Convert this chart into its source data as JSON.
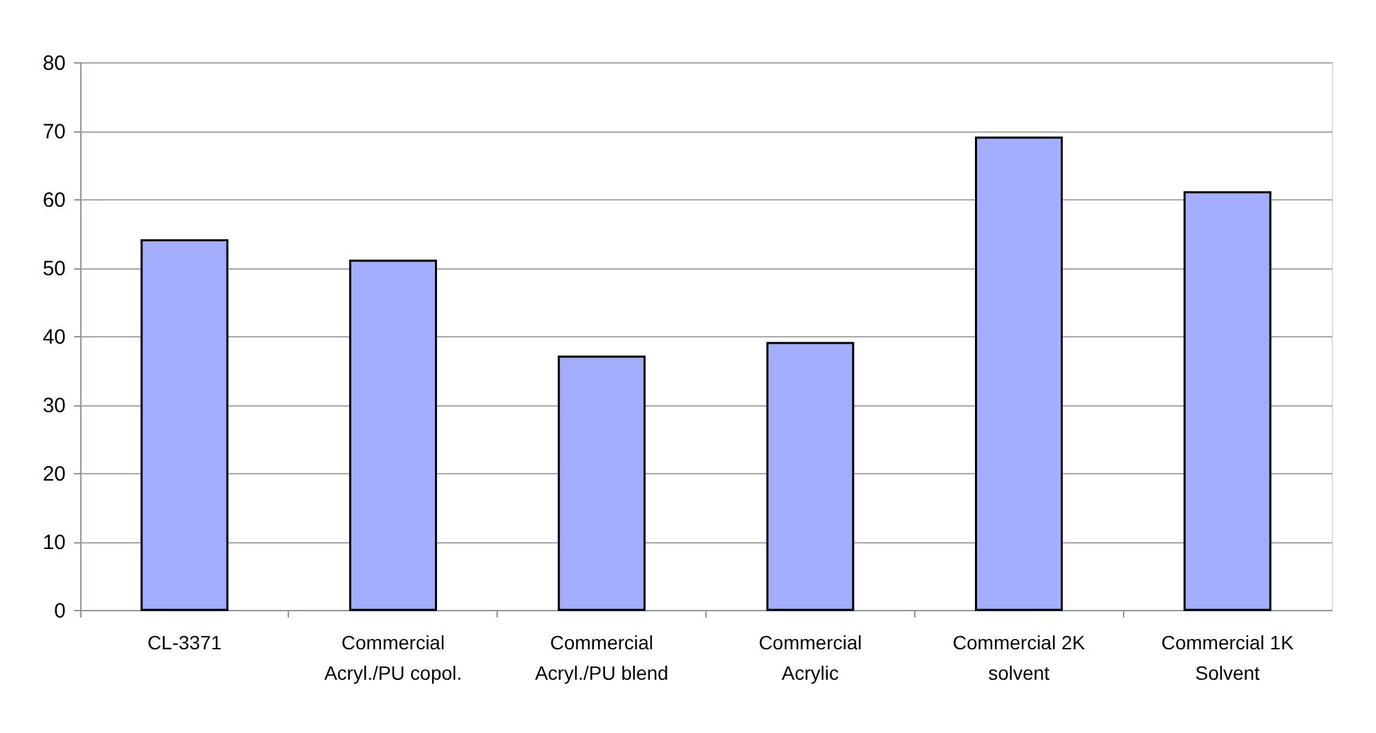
{
  "chart_data": {
    "type": "bar",
    "categories": [
      "CL-3371",
      "Commercial\nAcryl./PU copol.",
      "Commercial\nAcryl./PU blend",
      "Commercial\nAcrylic",
      "Commercial 2K\nsolvent",
      "Commercial 1K\nSolvent"
    ],
    "values": [
      54,
      51,
      37,
      39,
      69,
      61
    ],
    "color": "#a3aeff",
    "ylim": [
      0,
      80
    ],
    "yticks": [
      0,
      10,
      20,
      30,
      40,
      50,
      60,
      70,
      80
    ],
    "grid": "y"
  }
}
